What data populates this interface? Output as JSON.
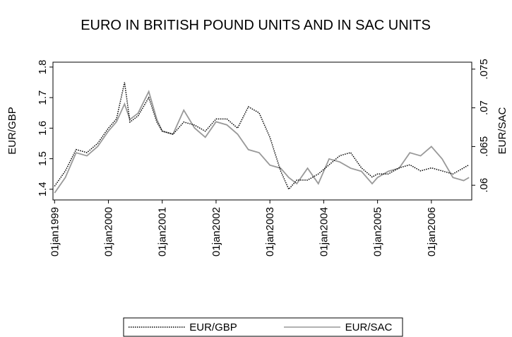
{
  "chart_data": {
    "type": "line",
    "title": "EURO IN BRITISH POUND UNITS AND IN SAC UNITS",
    "y_label": "EUR/GBP",
    "y2_label": "EUR/SAC",
    "x": [
      1999.0,
      1999.2,
      1999.4,
      1999.6,
      1999.8,
      2000.0,
      2000.15,
      2000.3,
      2000.4,
      2000.55,
      2000.75,
      2000.9,
      2001.0,
      2001.2,
      2001.4,
      2001.6,
      2001.8,
      2002.0,
      2002.2,
      2002.4,
      2002.6,
      2002.8,
      2003.0,
      2003.2,
      2003.35,
      2003.5,
      2003.7,
      2003.9,
      2004.1,
      2004.3,
      2004.5,
      2004.7,
      2004.9,
      2005.0,
      2005.2,
      2005.4,
      2005.6,
      2005.8,
      2006.0,
      2006.2,
      2006.4,
      2006.6,
      2006.7
    ],
    "series": [
      {
        "name": "EUR/GBP",
        "color": "#000000",
        "dash": "dotted",
        "axis": "y",
        "values": [
          1.41,
          1.46,
          1.53,
          1.52,
          1.55,
          1.6,
          1.63,
          1.75,
          1.62,
          1.64,
          1.7,
          1.62,
          1.59,
          1.58,
          1.62,
          1.61,
          1.59,
          1.63,
          1.63,
          1.6,
          1.67,
          1.65,
          1.57,
          1.46,
          1.4,
          1.43,
          1.43,
          1.45,
          1.48,
          1.51,
          1.52,
          1.47,
          1.44,
          1.45,
          1.45,
          1.47,
          1.48,
          1.46,
          1.47,
          1.46,
          1.45,
          1.47,
          1.48
        ]
      },
      {
        "name": "EUR/SAC",
        "color": "#999999",
        "dash": "solid",
        "axis": "y2",
        "values": [
          0.059,
          0.061,
          0.0642,
          0.0638,
          0.065,
          0.067,
          0.0682,
          0.0705,
          0.0685,
          0.0693,
          0.0721,
          0.0685,
          0.067,
          0.0666,
          0.0697,
          0.0674,
          0.0662,
          0.0682,
          0.0678,
          0.0666,
          0.0646,
          0.0642,
          0.0626,
          0.0622,
          0.061,
          0.0602,
          0.0622,
          0.0602,
          0.0634,
          0.063,
          0.0622,
          0.0618,
          0.0602,
          0.061,
          0.0618,
          0.0622,
          0.0642,
          0.0638,
          0.065,
          0.0634,
          0.061,
          0.0606,
          0.061
        ]
      }
    ],
    "xlim": [
      1998.97,
      2006.75
    ],
    "xticks": [
      {
        "value": 1999,
        "label": "01jan1999"
      },
      {
        "value": 2000,
        "label": "01jan2000"
      },
      {
        "value": 2001,
        "label": "01jan2001"
      },
      {
        "value": 2002,
        "label": "01jan2002"
      },
      {
        "value": 2003,
        "label": "01jan2003"
      },
      {
        "value": 2004,
        "label": "01jan2004"
      },
      {
        "value": 2005,
        "label": "01jan2005"
      },
      {
        "value": 2006,
        "label": "01jan2006"
      }
    ],
    "ylim": [
      1.365,
      1.816
    ],
    "yticks": [
      1.4,
      1.5,
      1.6,
      1.7,
      1.8
    ],
    "y2lim": [
      0.0581,
      0.0759
    ],
    "y2ticks": [
      {
        "value": 0.06,
        "label": ".06"
      },
      {
        "value": 0.065,
        "label": ".065"
      },
      {
        "value": 0.07,
        "label": ".07"
      },
      {
        "value": 0.075,
        "label": ".075"
      }
    ],
    "legend": "bottom"
  }
}
